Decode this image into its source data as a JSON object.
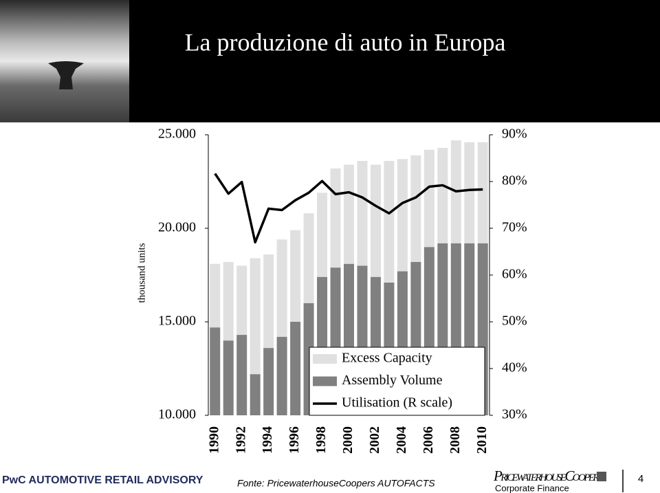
{
  "slide": {
    "title": "La produzione di auto in Europa",
    "footer_left": "PwC AUTOMOTIVE RETAIL ADVISORY",
    "source": "Fonte: PricewaterhouseCoopers AUTOFACTS",
    "logo": "PricewaterhouseCoopers",
    "division": "Corporate Finance",
    "page_number": "4"
  },
  "chart_data": {
    "type": "bar",
    "stacked": true,
    "y_label": "thousand units",
    "categories": [
      "1990",
      null,
      "1992",
      null,
      "1994",
      null,
      "1996",
      null,
      "1998",
      null,
      "2000",
      null,
      "2002",
      null,
      "2004",
      null,
      "2006",
      null,
      "2008",
      null,
      "2010"
    ],
    "series": [
      {
        "name": "Excess Capacity",
        "color": "#e0e0e0",
        "values": [
          3400,
          4200,
          3700,
          6200,
          5000,
          5200,
          4900,
          4800,
          4500,
          5300,
          5300,
          5600,
          6000,
          6500,
          6000,
          5700,
          5200,
          5100,
          5500,
          5400,
          5400
        ]
      },
      {
        "name": "Assembly Volume",
        "color": "#808080",
        "values": [
          14700,
          14000,
          14300,
          12200,
          13600,
          14200,
          15000,
          16000,
          17400,
          17900,
          18100,
          18000,
          17400,
          17100,
          17700,
          18200,
          19000,
          19200,
          19200,
          19200,
          19200
        ]
      },
      {
        "name": "Utilisation (R scale)",
        "color": "#000000",
        "axis": "y2",
        "type": "line",
        "values": [
          81.7,
          77.4,
          79.9,
          67.0,
          74.2,
          73.9,
          76.0,
          77.6,
          80.1,
          77.3,
          77.7,
          76.6,
          74.8,
          73.2,
          75.4,
          76.6,
          78.9,
          79.2,
          77.9,
          78.2,
          78.3
        ]
      }
    ],
    "ylim": [
      10000,
      25000
    ],
    "yticks": [
      {
        "value": 10000,
        "label": "10.000"
      },
      {
        "value": 15000,
        "label": "15.000"
      },
      {
        "value": 20000,
        "label": "20.000"
      },
      {
        "value": 25000,
        "label": "25.000"
      }
    ],
    "y2lim": [
      30,
      90
    ],
    "y2ticks": [
      {
        "value": 30,
        "label": "30%"
      },
      {
        "value": 40,
        "label": "40%"
      },
      {
        "value": 50,
        "label": "50%"
      },
      {
        "value": 60,
        "label": "60%"
      },
      {
        "value": 70,
        "label": "70%"
      },
      {
        "value": 80,
        "label": "80%"
      },
      {
        "value": 90,
        "label": "90%"
      }
    ],
    "legend": "bottom-right"
  }
}
